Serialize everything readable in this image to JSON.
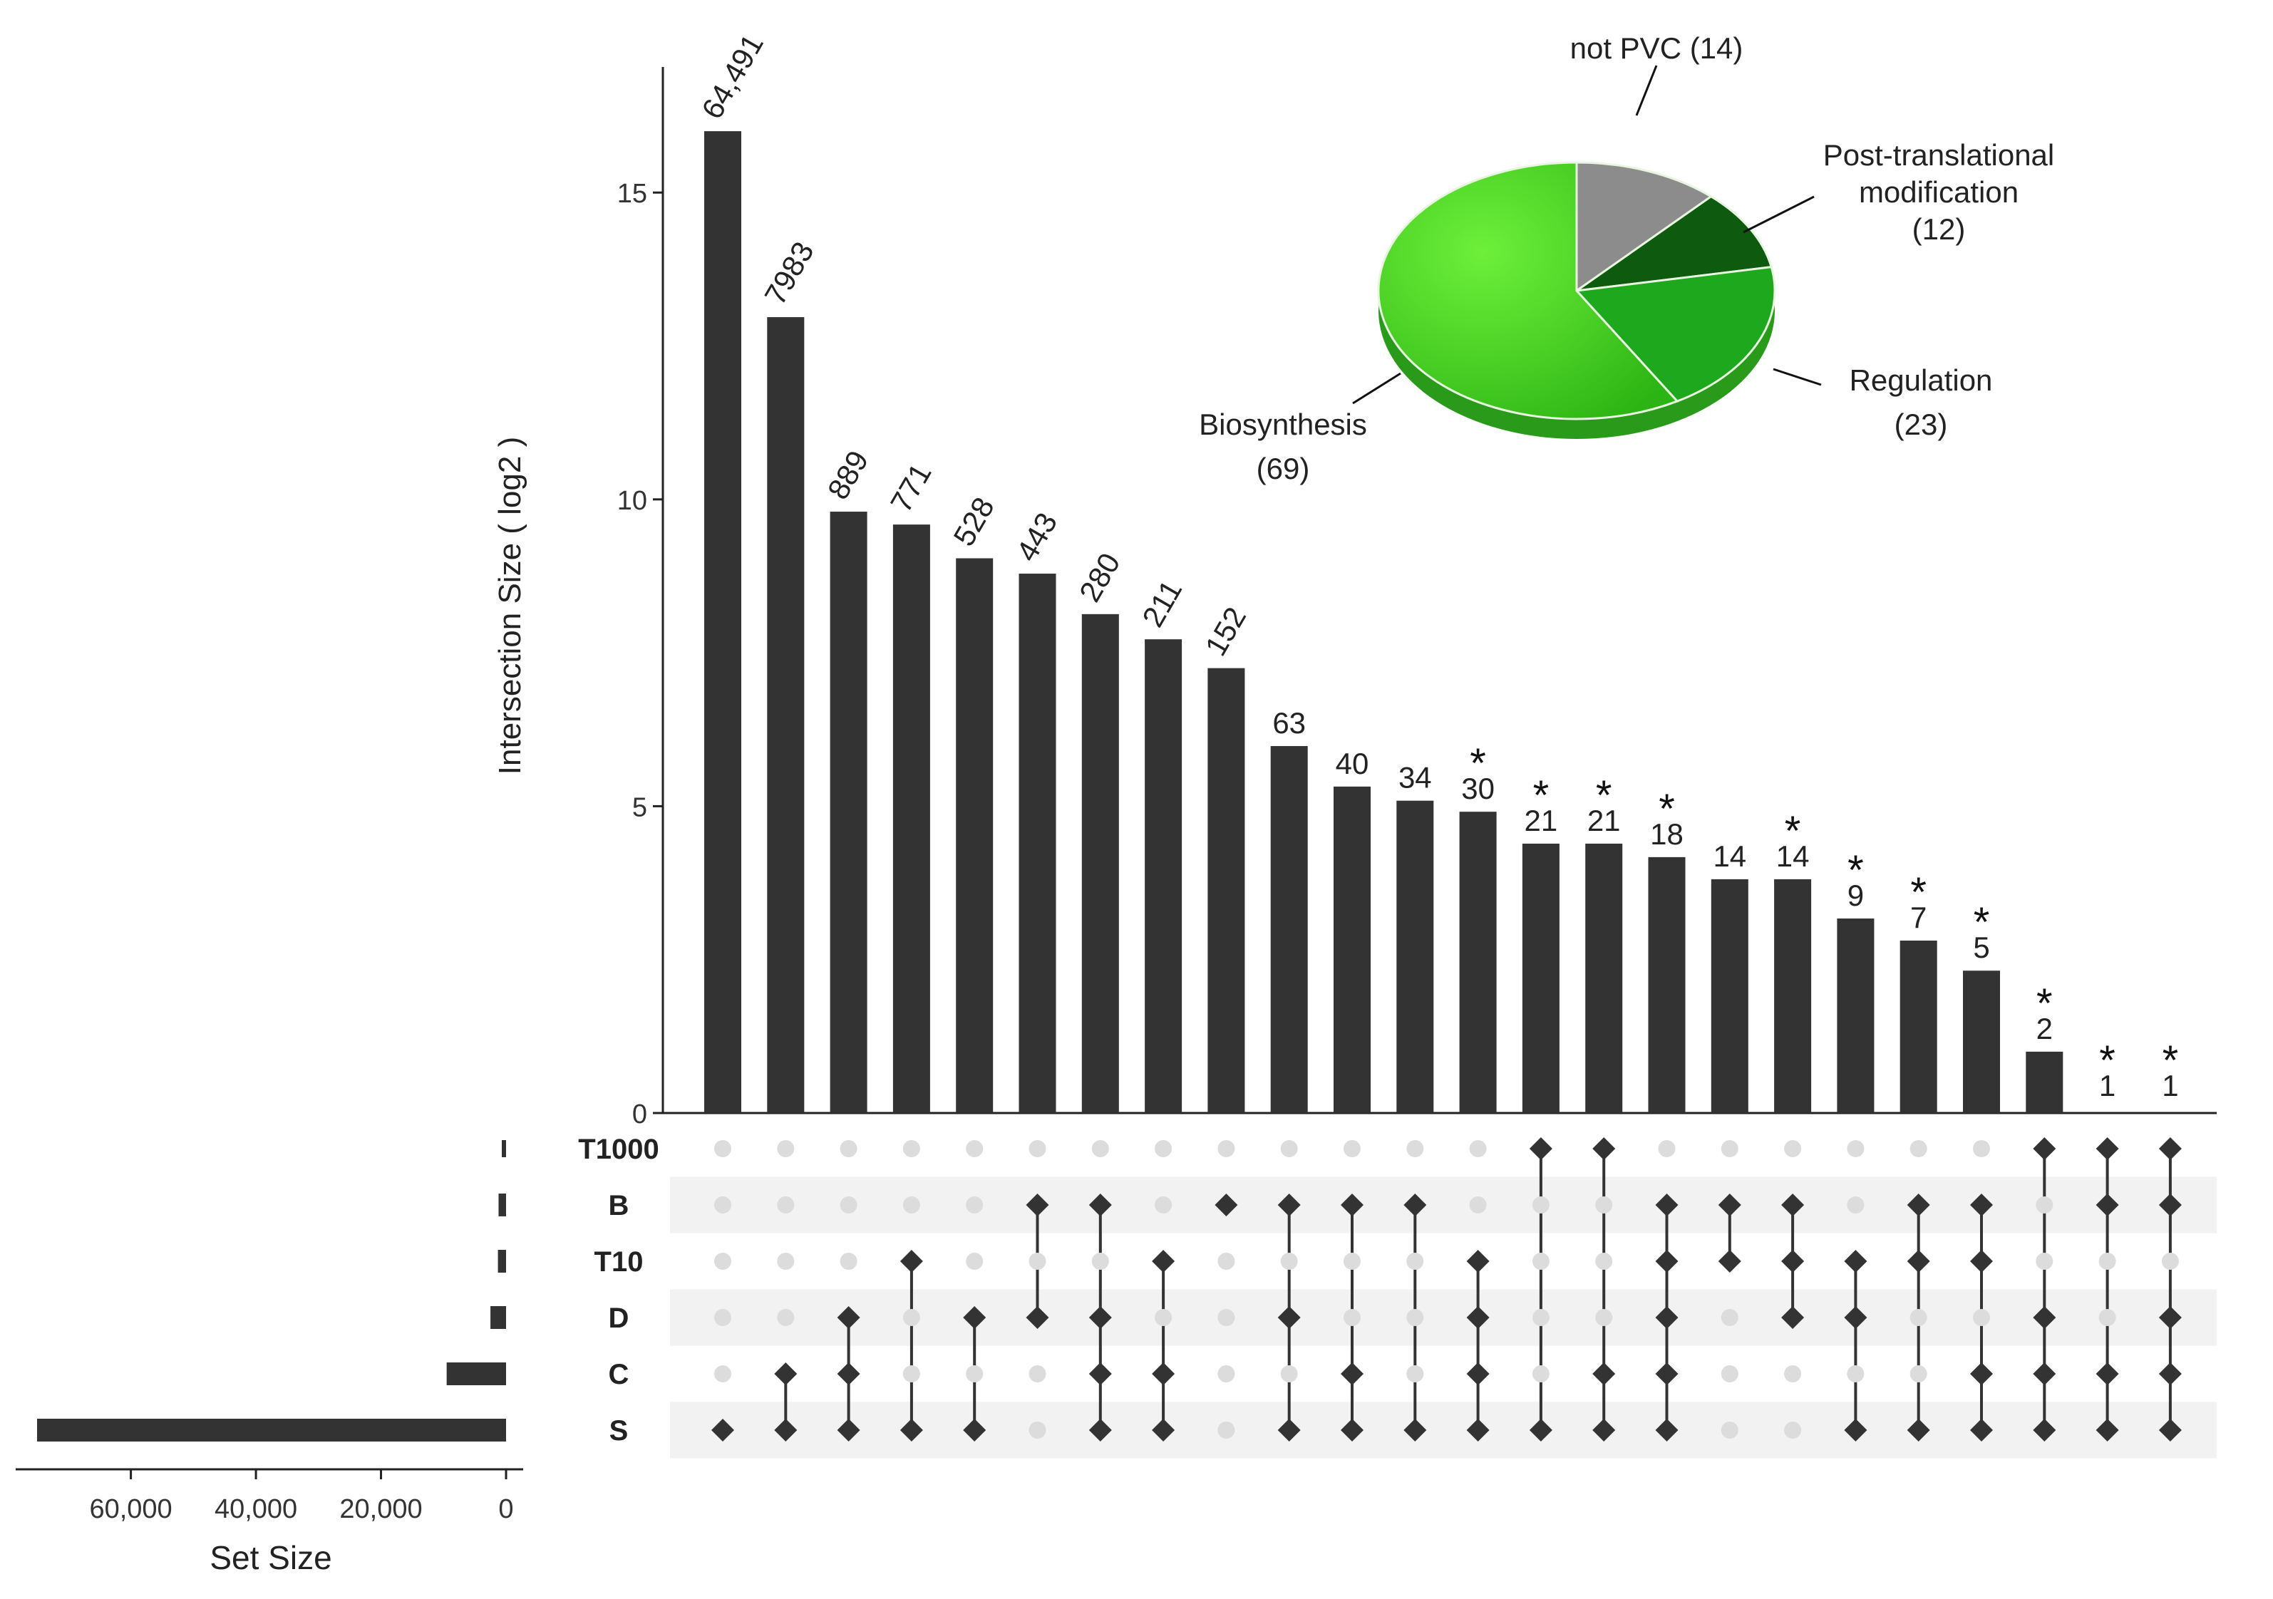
{
  "chart_data": [
    {
      "type": "bar",
      "role": "intersection-size",
      "ylabel": "Intersection Size ( log2 )",
      "ylim": [
        0,
        17
      ],
      "yticks": [
        0,
        5,
        10,
        15
      ],
      "bars": [
        {
          "label": "64,491",
          "log2": 16.0,
          "star": false
        },
        {
          "label": "7983",
          "log2": 12.97,
          "star": false
        },
        {
          "label": "889",
          "log2": 9.8,
          "star": false
        },
        {
          "label": "771",
          "log2": 9.59,
          "star": false
        },
        {
          "label": "528",
          "log2": 9.04,
          "star": false
        },
        {
          "label": "443",
          "log2": 8.79,
          "star": false
        },
        {
          "label": "280",
          "log2": 8.13,
          "star": false
        },
        {
          "label": "211",
          "log2": 7.72,
          "star": false
        },
        {
          "label": "152",
          "log2": 7.25,
          "star": false
        },
        {
          "label": "63",
          "log2": 5.98,
          "star": false
        },
        {
          "label": "40",
          "log2": 5.32,
          "star": false
        },
        {
          "label": "34",
          "log2": 5.09,
          "star": false
        },
        {
          "label": "30",
          "log2": 4.91,
          "star": true
        },
        {
          "label": "21",
          "log2": 4.39,
          "star": true
        },
        {
          "label": "21",
          "log2": 4.39,
          "star": true
        },
        {
          "label": "18",
          "log2": 4.17,
          "star": true
        },
        {
          "label": "14",
          "log2": 3.81,
          "star": false
        },
        {
          "label": "14",
          "log2": 3.81,
          "star": true
        },
        {
          "label": "9",
          "log2": 3.17,
          "star": true
        },
        {
          "label": "7",
          "log2": 2.81,
          "star": true
        },
        {
          "label": "5",
          "log2": 2.32,
          "star": true
        },
        {
          "label": "2",
          "log2": 1.0,
          "star": true
        },
        {
          "label": "1",
          "log2": 0.0,
          "star": true
        },
        {
          "label": "1",
          "log2": 0.0,
          "star": true
        }
      ],
      "star_symbol": "*"
    },
    {
      "type": "bar",
      "role": "set-size",
      "orientation": "horizontal",
      "xlabel": "Set Size",
      "xlim": [
        0,
        75000
      ],
      "xticks": [
        {
          "value": 60000,
          "label": "60,000"
        },
        {
          "value": 40000,
          "label": "40,000"
        },
        {
          "value": 20000,
          "label": "20,000"
        },
        {
          "value": 0,
          "label": "0"
        }
      ],
      "sets": [
        {
          "name": "T1000",
          "size": 300
        },
        {
          "name": "B",
          "size": 1200
        },
        {
          "name": "T10",
          "size": 1300
        },
        {
          "name": "D",
          "size": 2500
        },
        {
          "name": "C",
          "size": 9500
        },
        {
          "name": "S",
          "size": 75000
        }
      ]
    },
    {
      "type": "table",
      "role": "intersection-matrix",
      "rows": [
        "T1000",
        "B",
        "T10",
        "D",
        "C",
        "S"
      ],
      "columns": [
        [
          "S"
        ],
        [
          "C",
          "S"
        ],
        [
          "D",
          "C",
          "S"
        ],
        [
          "T10",
          "S"
        ],
        [
          "D",
          "S"
        ],
        [
          "B",
          "D"
        ],
        [
          "B",
          "D",
          "C",
          "S"
        ],
        [
          "T10",
          "C",
          "S"
        ],
        [
          "B"
        ],
        [
          "B",
          "D",
          "S"
        ],
        [
          "B",
          "C",
          "S"
        ],
        [
          "B",
          "S"
        ],
        [
          "T10",
          "D",
          "C",
          "S"
        ],
        [
          "T1000",
          "S"
        ],
        [
          "T1000",
          "C",
          "S"
        ],
        [
          "B",
          "T10",
          "D",
          "C",
          "S"
        ],
        [
          "B",
          "T10"
        ],
        [
          "B",
          "T10",
          "D"
        ],
        [
          "T10",
          "D",
          "S"
        ],
        [
          "B",
          "T10",
          "S"
        ],
        [
          "B",
          "T10",
          "C",
          "S"
        ],
        [
          "T1000",
          "D",
          "C",
          "S"
        ],
        [
          "T1000",
          "B",
          "C",
          "S"
        ],
        [
          "T1000",
          "B",
          "D",
          "C",
          "S"
        ]
      ]
    },
    {
      "type": "pie",
      "role": "inset",
      "slices": [
        {
          "name": "not PVC",
          "value": 14,
          "label_lines": [
            "not PVC (14)"
          ],
          "color": "#8c8c8c"
        },
        {
          "name": "Post-translational modification",
          "value": 12,
          "label_lines": [
            "Post-translational",
            "modification",
            "(12)"
          ],
          "color": "#0e5a0e"
        },
        {
          "name": "Regulation",
          "value": 23,
          "label_lines": [
            "Regulation",
            "(23)"
          ],
          "color": "#1ea81e"
        },
        {
          "name": "Biosynthesis",
          "value": 69,
          "label_lines": [
            "Biosynthesis",
            "(69)"
          ],
          "color": "#3fd11f"
        }
      ]
    }
  ],
  "colors": {
    "bar": "#333333",
    "dot_active": "#333333",
    "dot_inactive": "#dcdcdc",
    "stripe": "#f2f2f2",
    "axis": "#222222"
  }
}
